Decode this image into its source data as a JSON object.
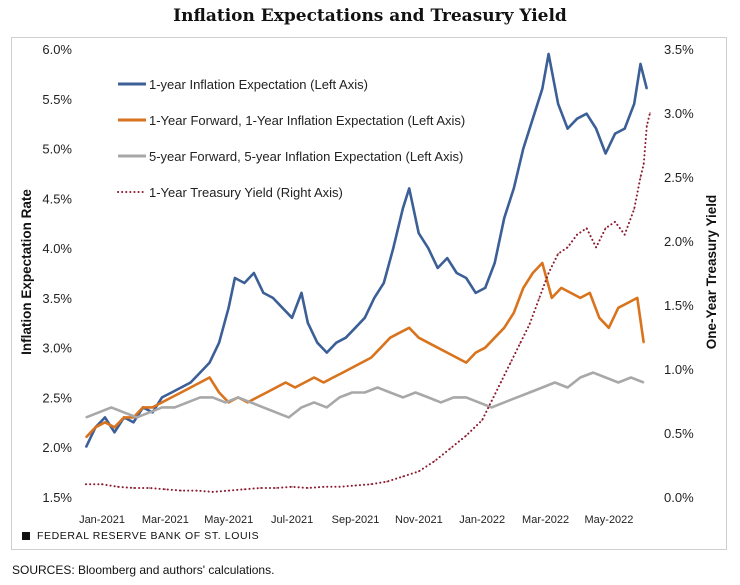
{
  "footer": {
    "brand": "FEDERAL RESERVE BANK OF ST. LOUIS",
    "sources": "SOURCES: Bloomberg and authors' calculations."
  },
  "colors": {
    "one_year": "#3b5f96",
    "forward_1y1y": "#d9731d",
    "forward_5y5y": "#a8a8a8",
    "treasury": "#8b1a2e"
  },
  "chart_data": {
    "type": "line",
    "title": "Inflation Expectations and Treasury Yield",
    "ylabel": "Inflation Expectation Rate",
    "y2label": "One-Year Treasury Yield",
    "ylim": [
      1.5,
      6.0
    ],
    "y2lim": [
      0.0,
      3.5
    ],
    "yticks": [
      "1.5%",
      "2.0%",
      "2.5%",
      "3.0%",
      "3.5%",
      "4.0%",
      "4.5%",
      "5.0%",
      "5.5%",
      "6.0%"
    ],
    "y2ticks": [
      "0.0%",
      "0.5%",
      "1.0%",
      "1.5%",
      "2.0%",
      "2.5%",
      "3.0%",
      "3.5%"
    ],
    "xlim": [
      0,
      17.8
    ],
    "xticks": [
      {
        "label": "Jan-2021",
        "x": 0
      },
      {
        "label": "Mar-2021",
        "x": 2
      },
      {
        "label": "May-2021",
        "x": 4
      },
      {
        "label": "Jul-2021",
        "x": 6
      },
      {
        "label": "Sep-2021",
        "x": 8
      },
      {
        "label": "Nov-2021",
        "x": 10
      },
      {
        "label": "Jan-2022",
        "x": 12
      },
      {
        "label": "Mar-2022",
        "x": 14
      },
      {
        "label": "May-2022",
        "x": 16
      }
    ],
    "legend_position": "top-left",
    "series": [
      {
        "name": "1-year Inflation Expectation (Left Axis)",
        "axis": "left",
        "style": "solid",
        "points": [
          [
            0,
            2.0
          ],
          [
            0.3,
            2.2
          ],
          [
            0.6,
            2.3
          ],
          [
            0.9,
            2.15
          ],
          [
            1.2,
            2.3
          ],
          [
            1.5,
            2.25
          ],
          [
            1.8,
            2.4
          ],
          [
            2.1,
            2.35
          ],
          [
            2.4,
            2.5
          ],
          [
            2.7,
            2.55
          ],
          [
            3.0,
            2.6
          ],
          [
            3.3,
            2.65
          ],
          [
            3.6,
            2.75
          ],
          [
            3.9,
            2.85
          ],
          [
            4.2,
            3.05
          ],
          [
            4.5,
            3.4
          ],
          [
            4.7,
            3.7
          ],
          [
            5.0,
            3.65
          ],
          [
            5.3,
            3.75
          ],
          [
            5.6,
            3.55
          ],
          [
            5.9,
            3.5
          ],
          [
            6.2,
            3.4
          ],
          [
            6.5,
            3.3
          ],
          [
            6.8,
            3.55
          ],
          [
            7.0,
            3.25
          ],
          [
            7.3,
            3.05
          ],
          [
            7.6,
            2.95
          ],
          [
            7.9,
            3.05
          ],
          [
            8.2,
            3.1
          ],
          [
            8.5,
            3.2
          ],
          [
            8.8,
            3.3
          ],
          [
            9.1,
            3.5
          ],
          [
            9.4,
            3.65
          ],
          [
            9.7,
            4.0
          ],
          [
            10.0,
            4.4
          ],
          [
            10.2,
            4.6
          ],
          [
            10.5,
            4.15
          ],
          [
            10.8,
            4.0
          ],
          [
            11.1,
            3.8
          ],
          [
            11.4,
            3.9
          ],
          [
            11.7,
            3.75
          ],
          [
            12.0,
            3.7
          ],
          [
            12.3,
            3.55
          ],
          [
            12.6,
            3.6
          ],
          [
            12.9,
            3.85
          ],
          [
            13.2,
            4.3
          ],
          [
            13.5,
            4.6
          ],
          [
            13.8,
            5.0
          ],
          [
            14.1,
            5.3
          ],
          [
            14.4,
            5.6
          ],
          [
            14.6,
            5.95
          ],
          [
            14.9,
            5.45
          ],
          [
            15.2,
            5.2
          ],
          [
            15.5,
            5.3
          ],
          [
            15.8,
            5.35
          ],
          [
            16.1,
            5.2
          ],
          [
            16.4,
            4.95
          ],
          [
            16.7,
            5.15
          ],
          [
            17.0,
            5.2
          ],
          [
            17.3,
            5.45
          ],
          [
            17.5,
            5.85
          ],
          [
            17.7,
            5.6
          ]
        ]
      },
      {
        "name": "1-Year Forward, 1-Year Inflation Expectation (Left Axis)",
        "axis": "left",
        "style": "solid",
        "points": [
          [
            0,
            2.1
          ],
          [
            0.3,
            2.2
          ],
          [
            0.6,
            2.25
          ],
          [
            0.9,
            2.2
          ],
          [
            1.2,
            2.3
          ],
          [
            1.5,
            2.3
          ],
          [
            1.8,
            2.4
          ],
          [
            2.1,
            2.4
          ],
          [
            2.4,
            2.45
          ],
          [
            2.7,
            2.5
          ],
          [
            3.0,
            2.55
          ],
          [
            3.3,
            2.6
          ],
          [
            3.6,
            2.65
          ],
          [
            3.9,
            2.7
          ],
          [
            4.2,
            2.55
          ],
          [
            4.5,
            2.45
          ],
          [
            4.8,
            2.5
          ],
          [
            5.1,
            2.45
          ],
          [
            5.4,
            2.5
          ],
          [
            5.7,
            2.55
          ],
          [
            6.0,
            2.6
          ],
          [
            6.3,
            2.65
          ],
          [
            6.6,
            2.6
          ],
          [
            6.9,
            2.65
          ],
          [
            7.2,
            2.7
          ],
          [
            7.5,
            2.65
          ],
          [
            7.8,
            2.7
          ],
          [
            8.1,
            2.75
          ],
          [
            8.4,
            2.8
          ],
          [
            8.7,
            2.85
          ],
          [
            9.0,
            2.9
          ],
          [
            9.3,
            3.0
          ],
          [
            9.6,
            3.1
          ],
          [
            9.9,
            3.15
          ],
          [
            10.2,
            3.2
          ],
          [
            10.5,
            3.1
          ],
          [
            10.8,
            3.05
          ],
          [
            11.1,
            3.0
          ],
          [
            11.4,
            2.95
          ],
          [
            11.7,
            2.9
          ],
          [
            12.0,
            2.85
          ],
          [
            12.3,
            2.95
          ],
          [
            12.6,
            3.0
          ],
          [
            12.9,
            3.1
          ],
          [
            13.2,
            3.2
          ],
          [
            13.5,
            3.35
          ],
          [
            13.8,
            3.6
          ],
          [
            14.1,
            3.75
          ],
          [
            14.4,
            3.85
          ],
          [
            14.7,
            3.5
          ],
          [
            15.0,
            3.6
          ],
          [
            15.3,
            3.55
          ],
          [
            15.6,
            3.5
          ],
          [
            15.9,
            3.55
          ],
          [
            16.2,
            3.3
          ],
          [
            16.5,
            3.2
          ],
          [
            16.8,
            3.4
          ],
          [
            17.1,
            3.45
          ],
          [
            17.4,
            3.5
          ],
          [
            17.6,
            3.05
          ]
        ]
      },
      {
        "name": "5-year Forward, 5-year Inflation Expectation (Left Axis)",
        "axis": "left",
        "style": "solid",
        "points": [
          [
            0,
            2.3
          ],
          [
            0.4,
            2.35
          ],
          [
            0.8,
            2.4
          ],
          [
            1.2,
            2.35
          ],
          [
            1.6,
            2.3
          ],
          [
            2.0,
            2.35
          ],
          [
            2.4,
            2.4
          ],
          [
            2.8,
            2.4
          ],
          [
            3.2,
            2.45
          ],
          [
            3.6,
            2.5
          ],
          [
            4.0,
            2.5
          ],
          [
            4.4,
            2.45
          ],
          [
            4.8,
            2.5
          ],
          [
            5.2,
            2.45
          ],
          [
            5.6,
            2.4
          ],
          [
            6.0,
            2.35
          ],
          [
            6.4,
            2.3
          ],
          [
            6.8,
            2.4
          ],
          [
            7.2,
            2.45
          ],
          [
            7.6,
            2.4
          ],
          [
            8.0,
            2.5
          ],
          [
            8.4,
            2.55
          ],
          [
            8.8,
            2.55
          ],
          [
            9.2,
            2.6
          ],
          [
            9.6,
            2.55
          ],
          [
            10.0,
            2.5
          ],
          [
            10.4,
            2.55
          ],
          [
            10.8,
            2.5
          ],
          [
            11.2,
            2.45
          ],
          [
            11.6,
            2.5
          ],
          [
            12.0,
            2.5
          ],
          [
            12.4,
            2.45
          ],
          [
            12.8,
            2.4
          ],
          [
            13.2,
            2.45
          ],
          [
            13.6,
            2.5
          ],
          [
            14.0,
            2.55
          ],
          [
            14.4,
            2.6
          ],
          [
            14.8,
            2.65
          ],
          [
            15.2,
            2.6
          ],
          [
            15.6,
            2.7
          ],
          [
            16.0,
            2.75
          ],
          [
            16.4,
            2.7
          ],
          [
            16.8,
            2.65
          ],
          [
            17.2,
            2.7
          ],
          [
            17.6,
            2.65
          ]
        ]
      },
      {
        "name": "1-Year Treasury Yield (Right Axis)",
        "axis": "right",
        "style": "dotted",
        "points": [
          [
            0,
            0.1
          ],
          [
            0.5,
            0.1
          ],
          [
            1.0,
            0.08
          ],
          [
            1.5,
            0.07
          ],
          [
            2.0,
            0.07
          ],
          [
            2.5,
            0.06
          ],
          [
            3.0,
            0.05
          ],
          [
            3.5,
            0.05
          ],
          [
            4.0,
            0.04
          ],
          [
            4.5,
            0.05
          ],
          [
            5.0,
            0.06
          ],
          [
            5.5,
            0.07
          ],
          [
            6.0,
            0.07
          ],
          [
            6.5,
            0.08
          ],
          [
            7.0,
            0.07
          ],
          [
            7.5,
            0.08
          ],
          [
            8.0,
            0.08
          ],
          [
            8.5,
            0.09
          ],
          [
            9.0,
            0.1
          ],
          [
            9.5,
            0.12
          ],
          [
            10.0,
            0.16
          ],
          [
            10.5,
            0.2
          ],
          [
            11.0,
            0.28
          ],
          [
            11.5,
            0.38
          ],
          [
            12.0,
            0.48
          ],
          [
            12.5,
            0.6
          ],
          [
            12.8,
            0.75
          ],
          [
            13.1,
            0.9
          ],
          [
            13.4,
            1.05
          ],
          [
            13.7,
            1.2
          ],
          [
            14.0,
            1.35
          ],
          [
            14.3,
            1.55
          ],
          [
            14.6,
            1.75
          ],
          [
            14.9,
            1.9
          ],
          [
            15.2,
            1.95
          ],
          [
            15.5,
            2.05
          ],
          [
            15.8,
            2.1
          ],
          [
            16.1,
            1.95
          ],
          [
            16.4,
            2.1
          ],
          [
            16.7,
            2.15
          ],
          [
            17.0,
            2.05
          ],
          [
            17.3,
            2.25
          ],
          [
            17.5,
            2.5
          ],
          [
            17.6,
            2.6
          ],
          [
            17.7,
            2.9
          ],
          [
            17.8,
            3.0
          ]
        ]
      }
    ]
  }
}
